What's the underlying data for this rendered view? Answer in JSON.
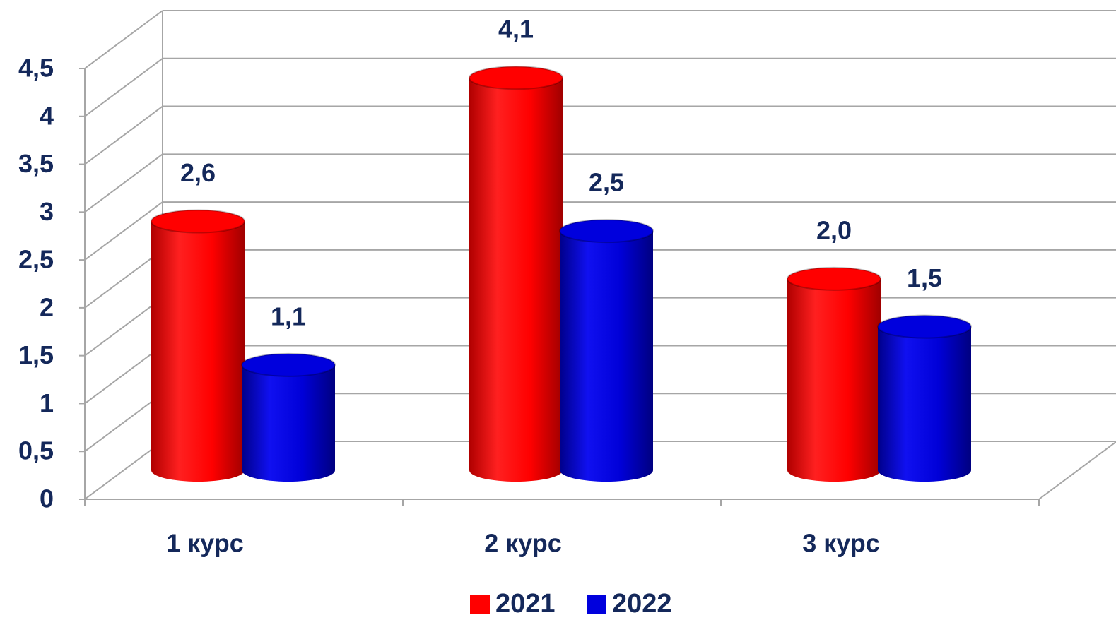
{
  "chart_data": {
    "type": "bar3d",
    "categories": [
      "1 курс",
      "2 курс",
      "3 курс"
    ],
    "series": [
      {
        "name": "2021",
        "color": "#ff0000",
        "values": [
          2.6,
          4.1,
          2.0
        ],
        "value_labels": [
          "2,6",
          "4,1",
          "2,0"
        ]
      },
      {
        "name": "2022",
        "color": "#0000dd",
        "values": [
          1.1,
          2.5,
          1.5
        ],
        "value_labels": [
          "1,1",
          "2,5",
          "1,5"
        ]
      }
    ],
    "ylim": [
      0,
      4.5
    ],
    "yticks": [
      0,
      {
        "value": 0.5,
        "label": "0,5"
      },
      1,
      {
        "value": 1.5,
        "label": "1,5"
      },
      2,
      {
        "value": 2.5,
        "label": "2,5"
      },
      3,
      {
        "value": 3.5,
        "label": "3,5"
      },
      4,
      {
        "value": 4.5,
        "label": "4,5"
      }
    ],
    "grid": true,
    "legend": "bottom"
  }
}
